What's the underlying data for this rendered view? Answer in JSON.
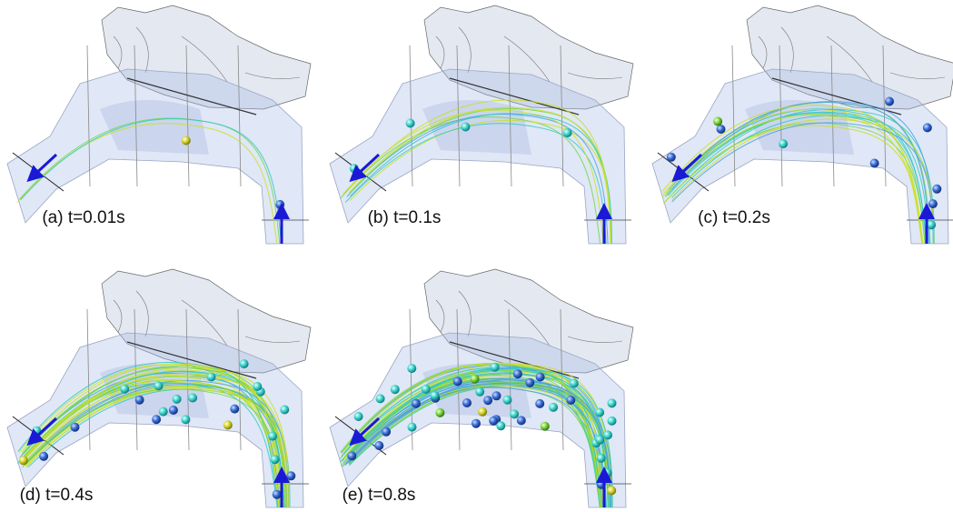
{
  "figure": {
    "panels": [
      {
        "caption": "(a) t=0.01s"
      },
      {
        "caption": "(b) t=0.1s"
      },
      {
        "caption": "(c) t=0.2s"
      },
      {
        "caption": "(d) t=0.4s"
      },
      {
        "caption": "(e) t=0.8s"
      }
    ]
  }
}
